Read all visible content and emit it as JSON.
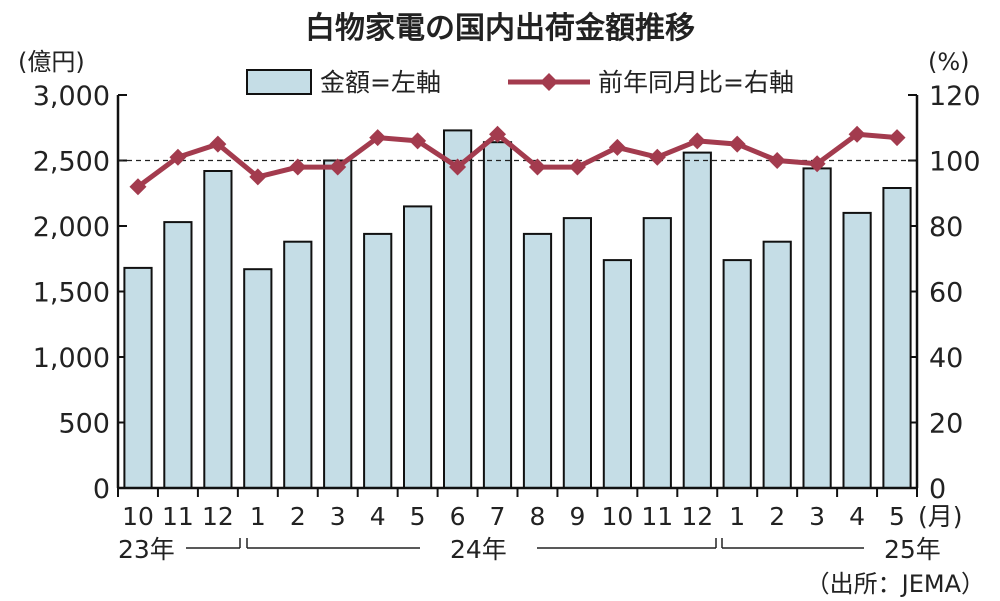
{
  "chart_data": {
    "type": "bar+line",
    "title": "白物家電の国内出荷金額推移",
    "left_unit": "(億円)",
    "right_unit": "(%)",
    "month_unit": "(月)",
    "source": "（出所：JEMA）",
    "categories": [
      "10",
      "11",
      "12",
      "1",
      "2",
      "3",
      "4",
      "5",
      "6",
      "7",
      "8",
      "9",
      "10",
      "11",
      "12",
      "1",
      "2",
      "3",
      "4",
      "5"
    ],
    "year_labels": [
      "23年",
      "24年",
      "25年"
    ],
    "series": [
      {
        "name": "金額=左軸",
        "type": "bar",
        "axis": "left",
        "values": [
          1680,
          2030,
          2420,
          1670,
          1880,
          2500,
          1940,
          2150,
          2730,
          2640,
          1940,
          2060,
          1740,
          2060,
          2560,
          1740,
          1880,
          2440,
          2100,
          2290
        ]
      },
      {
        "name": "前年同月比=右軸",
        "type": "line",
        "axis": "right",
        "values": [
          92,
          101,
          105,
          95,
          98,
          98,
          107,
          106,
          98,
          108,
          98,
          98,
          104,
          101,
          106,
          105,
          100,
          99,
          108,
          107
        ]
      }
    ],
    "left_axis": {
      "min": 0,
      "max": 3000,
      "ticks": [
        "0",
        "500",
        "1,000",
        "1,500",
        "2,000",
        "2,500",
        "3,000"
      ]
    },
    "right_axis": {
      "min": 0,
      "max": 120,
      "ticks": [
        "0",
        "20",
        "40",
        "60",
        "80",
        "100",
        "120"
      ]
    },
    "reference_line": {
      "axis": "right",
      "value": 100,
      "style": "dashed"
    },
    "colors": {
      "bar_fill": "#c5dde6",
      "bar_stroke": "#111111",
      "line": "#a33b4e",
      "marker": "#a33b4e",
      "text": "#222222"
    }
  }
}
